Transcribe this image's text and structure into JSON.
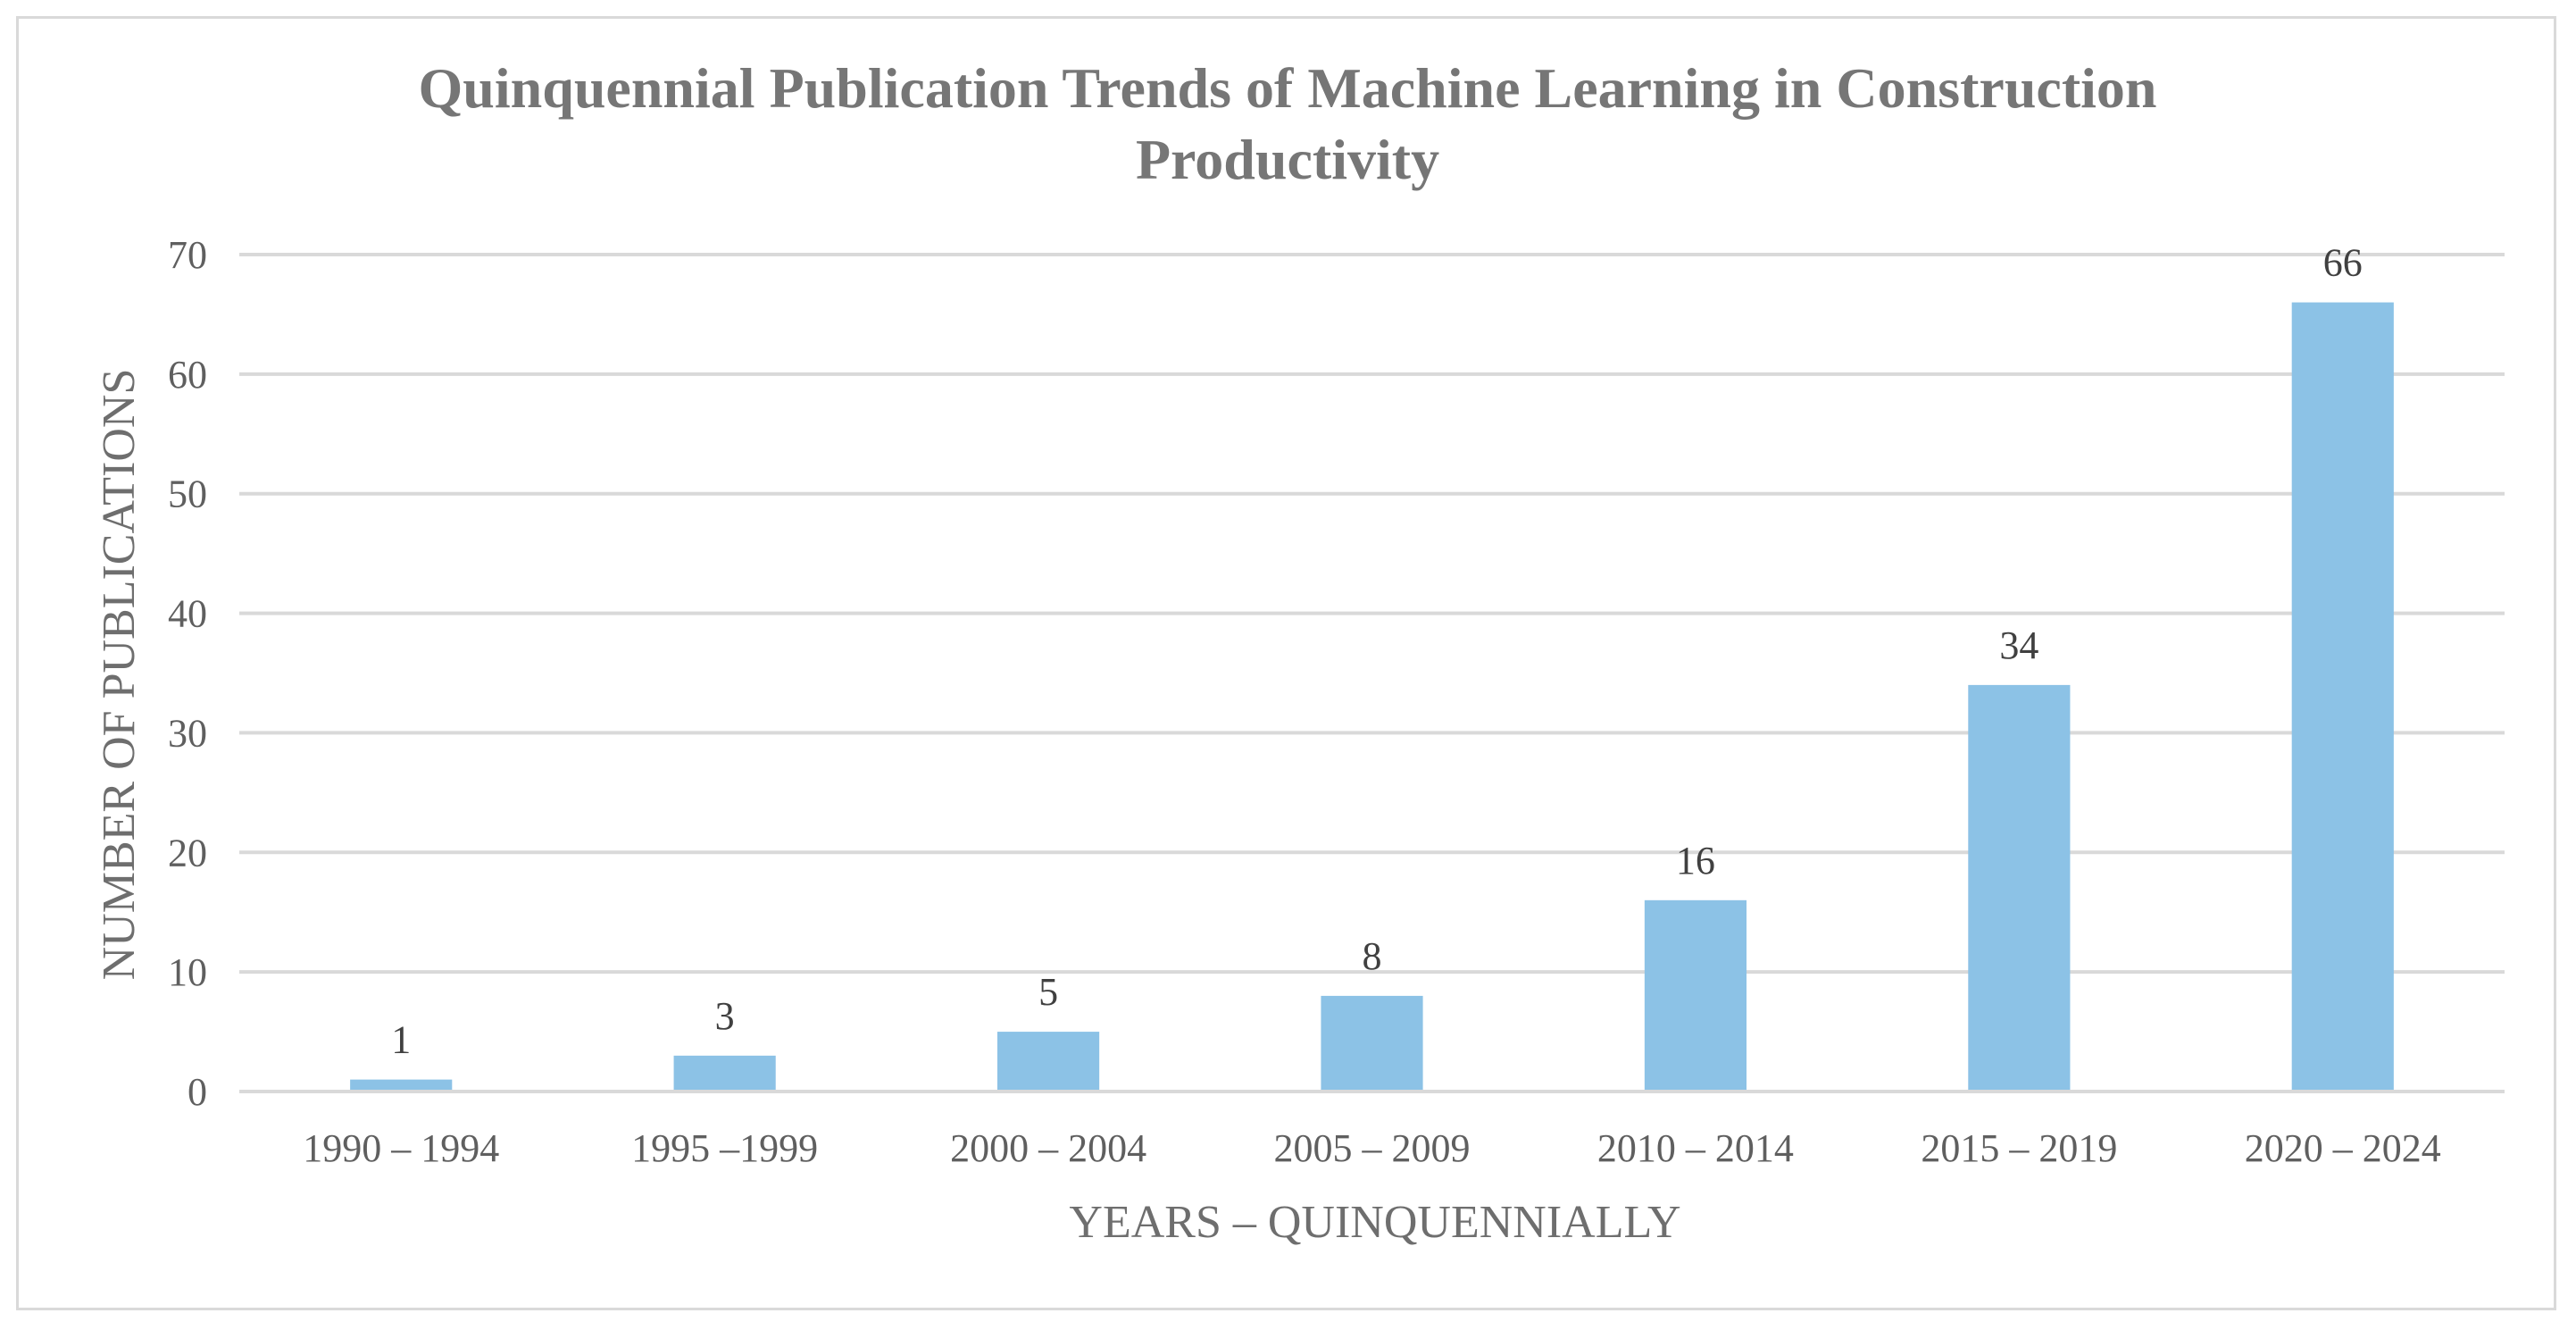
{
  "chart_data": {
    "type": "bar",
    "title_lines": [
      "Quinquennial  Publication  Trends of Machine  Learning  in Construction",
      "Productivity"
    ],
    "xlabel": "YEARS – QUINQUENNIALLY",
    "ylabel": "NUMBER OF PUBLICATIONS",
    "categories": [
      "1990 – 1994",
      "1995 –1999",
      "2000 – 2004",
      "2005 – 2009",
      "2010 – 2014",
      "2015 – 2019",
      "2020 – 2024"
    ],
    "values": [
      1,
      3,
      5,
      8,
      16,
      34,
      66
    ],
    "data_labels": [
      "1",
      "3",
      "5",
      "8",
      "16",
      "34",
      "66"
    ],
    "ylim": [
      0,
      70
    ],
    "yticks": [
      0,
      10,
      20,
      30,
      40,
      50,
      60,
      70
    ],
    "ytick_labels": [
      "0",
      "10",
      "20",
      "30",
      "40",
      "50",
      "60",
      "70"
    ],
    "grid": true,
    "legend": "none",
    "colors": {
      "bar": "#8cc2e6",
      "gridline": "#d9d9d9",
      "title": "#767676",
      "border": "#d9d9d9"
    }
  }
}
